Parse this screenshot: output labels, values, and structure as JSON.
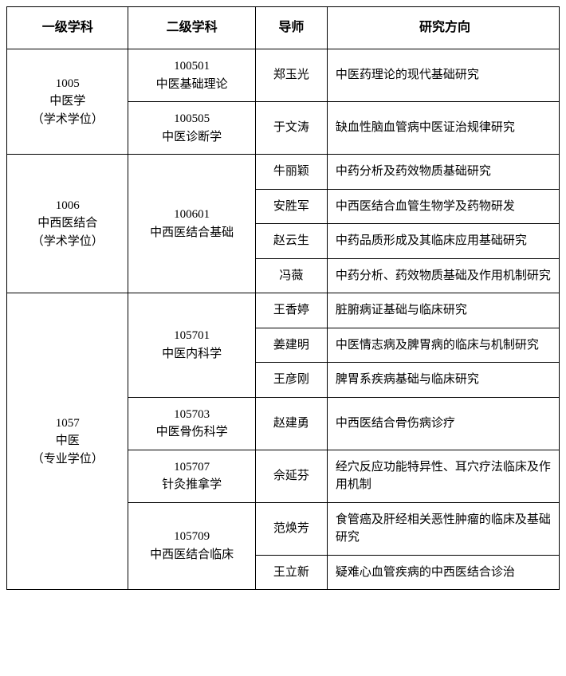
{
  "border_color": "#000000",
  "background_color": "#ffffff",
  "text_color": "#000000",
  "font_family": "SimSun",
  "headers": {
    "primary": "一级学科",
    "secondary": "二级学科",
    "advisor": "导师",
    "direction": "研究方向"
  },
  "groups": [
    {
      "primary_code": "1005",
      "primary_name": "中医学",
      "primary_note": "（学术学位）",
      "subgroups": [
        {
          "secondary_code": "100501",
          "secondary_name": "中医基础理论",
          "rows": [
            {
              "advisor": "郑玉光",
              "direction": "中医药理论的现代基础研究"
            }
          ]
        },
        {
          "secondary_code": "100505",
          "secondary_name": "中医诊断学",
          "rows": [
            {
              "advisor": "于文涛",
              "direction": "缺血性脑血管病中医证治规律研究"
            }
          ]
        }
      ]
    },
    {
      "primary_code": "1006",
      "primary_name": "中西医结合",
      "primary_note": "（学术学位）",
      "subgroups": [
        {
          "secondary_code": "100601",
          "secondary_name": "中西医结合基础",
          "rows": [
            {
              "advisor": "牛丽颖",
              "direction": "中药分析及药效物质基础研究"
            },
            {
              "advisor": "安胜军",
              "direction": "中西医结合血管生物学及药物研发"
            },
            {
              "advisor": "赵云生",
              "direction": "中药品质形成及其临床应用基础研究"
            },
            {
              "advisor": "冯薇",
              "direction": "中药分析、药效物质基础及作用机制研究"
            }
          ]
        }
      ]
    },
    {
      "primary_code": "1057",
      "primary_name": "中医",
      "primary_note": "（专业学位）",
      "subgroups": [
        {
          "secondary_code": "105701",
          "secondary_name": "中医内科学",
          "rows": [
            {
              "advisor": "王香婷",
              "direction": "脏腑病证基础与临床研究"
            },
            {
              "advisor": "姜建明",
              "direction": "中医情志病及脾胃病的临床与机制研究"
            },
            {
              "advisor": "王彦刚",
              "direction": "脾胃系疾病基础与临床研究"
            }
          ]
        },
        {
          "secondary_code": "105703",
          "secondary_name": "中医骨伤科学",
          "rows": [
            {
              "advisor": "赵建勇",
              "direction": "中西医结合骨伤病诊疗"
            }
          ]
        },
        {
          "secondary_code": "105707",
          "secondary_name": "针灸推拿学",
          "rows": [
            {
              "advisor": "佘延芬",
              "direction": "经穴反应功能特异性、耳穴疗法临床及作用机制"
            }
          ]
        },
        {
          "secondary_code": "105709",
          "secondary_name": "中西医结合临床",
          "rows": [
            {
              "advisor": "范焕芳",
              "direction": "食管癌及肝经相关恶性肿瘤的临床及基础研究"
            },
            {
              "advisor": "王立新",
              "direction": "疑难心血管疾病的中西医结合诊治"
            }
          ]
        }
      ]
    }
  ]
}
